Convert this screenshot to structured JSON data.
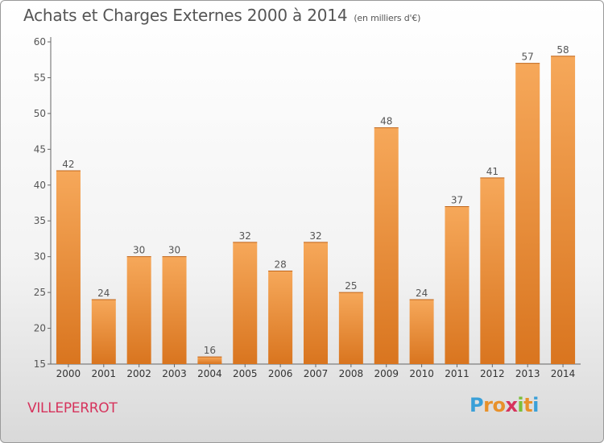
{
  "title": "Achats et Charges Externes 2000 à 2014",
  "unit_note": "(en milliers d'€)",
  "commune": "VILLEPERROT",
  "logo": {
    "letters": [
      "P",
      "r",
      "o",
      "x",
      "i",
      "t",
      "i"
    ],
    "colors": [
      "#3aa0d8",
      "#e8912a",
      "#e8912a",
      "#d6335c",
      "#7cbf3a",
      "#e8912a",
      "#3aa0d8"
    ]
  },
  "colors": {
    "bar_top": "#f6a85a",
    "bar_bottom": "#d9751f",
    "axis": "#666666",
    "text": "#555555",
    "title": "#555555",
    "commune": "#d6335c"
  },
  "chart_data": {
    "type": "bar",
    "title": "Achats et Charges Externes 2000 à 2014",
    "categories": [
      "2000",
      "2001",
      "2002",
      "2003",
      "2004",
      "2005",
      "2006",
      "2007",
      "2008",
      "2009",
      "2010",
      "2011",
      "2012",
      "2013",
      "2014"
    ],
    "values": [
      42,
      24,
      30,
      30,
      16,
      32,
      28,
      32,
      25,
      48,
      24,
      37,
      41,
      57,
      58
    ],
    "ylim": [
      15,
      60
    ],
    "yticks": [
      15,
      20,
      25,
      30,
      35,
      40,
      45,
      50,
      55,
      60
    ],
    "xlabel": "",
    "ylabel": "",
    "grid": false,
    "data_labels": true
  }
}
